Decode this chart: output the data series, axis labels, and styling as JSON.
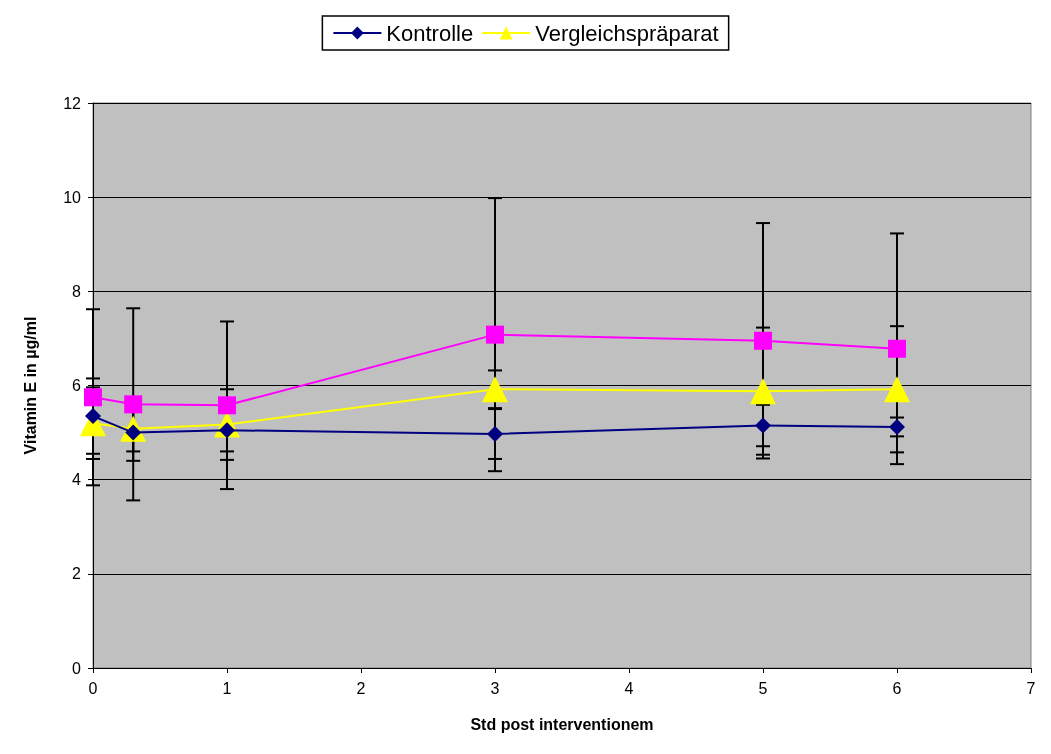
{
  "chart_data": {
    "type": "line",
    "xlabel": "Std post interventionem",
    "ylabel": "Vitamin E in µg/ml",
    "x": [
      0,
      0.3,
      1,
      3,
      5,
      6
    ],
    "xlim": [
      0,
      7
    ],
    "xticks": [
      0,
      1,
      2,
      3,
      4,
      5,
      6,
      7
    ],
    "ylim": [
      0,
      12
    ],
    "yticks": [
      0,
      2,
      4,
      6,
      8,
      10,
      12
    ],
    "grid": "y",
    "legend": "top",
    "series": [
      {
        "name": "Kontrolle",
        "color": "#000080",
        "marker": "diamond",
        "values": [
          5.35,
          5.0,
          5.05,
          4.97,
          5.15,
          5.12
        ],
        "errors": [
          0.8,
          0.6,
          0.45,
          0.53,
          0.44,
          0.2
        ]
      },
      {
        "color": "#ff00ff",
        "marker": "square",
        "values": [
          5.75,
          5.6,
          5.58,
          7.08,
          6.95,
          6.78
        ],
        "errors": [
          1.87,
          2.04,
          1.78,
          2.9,
          2.5,
          2.45
        ]
      },
      {
        "name": "Vergleichspräparat",
        "color": "#ffff00",
        "marker": "triangle",
        "values": [
          5.2,
          5.08,
          5.17,
          5.92,
          5.88,
          5.92
        ],
        "errors": [
          0.76,
          0.48,
          0.75,
          0.4,
          1.35,
          1.34
        ]
      }
    ]
  }
}
